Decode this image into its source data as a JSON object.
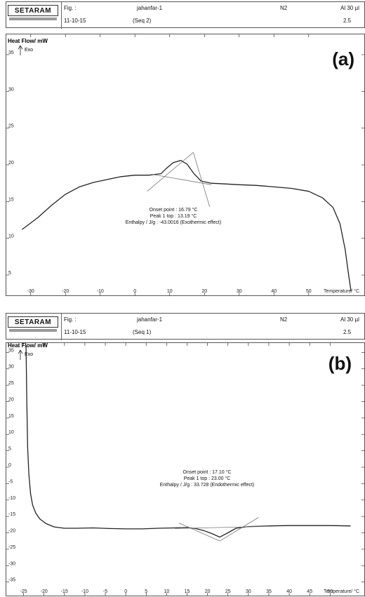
{
  "panels": [
    {
      "tag": "(a)",
      "header": {
        "logo": "SETARAM",
        "fig_label": "Fig. :",
        "date": "11-10-15",
        "sample": "jahanfar-1",
        "seq": "(Seq  2)",
        "gas": "N2",
        "crucible": "Al 30 µl",
        "mass": "2.5"
      },
      "ylabel_line1": "Heat Flow/ mW",
      "ylabel_line2": "Exo",
      "xlabel": "Temperature/ °C",
      "annotation": [
        "Onset point : 16.79  °C",
        "Peak 1 top : 13.19  °C",
        "Enthalpy / J/g : -43.0016 (Exothermic effect)"
      ]
    },
    {
      "tag": "(b)",
      "header": {
        "logo": "SETARAM",
        "fig_label": "Fig. :",
        "date": "11-10-15",
        "sample": "jahanfar-1",
        "seq": "(Seq  1)",
        "gas": "N2",
        "crucible": "Al 30 µl",
        "mass": "2.5"
      },
      "ylabel_line1": "Heat Flow/ mW",
      "ylabel_line2": "Exo",
      "xlabel": "Temperature/ °C",
      "annotation": [
        "Onset point : 17.10  °C",
        "Peak 1 top : 23.00  °C",
        "Enthalpy / J/g : 33.728 (Endothermic effect)"
      ]
    }
  ],
  "chart_data": [
    {
      "type": "line",
      "title": "",
      "xlabel": "Temperature/ °C",
      "ylabel": "Heat Flow/ mW",
      "xlim": [
        -35,
        65
      ],
      "ylim": [
        3,
        37
      ],
      "x_ticks": [
        -30,
        -20,
        -10,
        0,
        10,
        20,
        30,
        40,
        50
      ],
      "y_ticks": [
        35,
        30,
        25,
        20,
        15,
        10,
        5
      ],
      "grid": false,
      "series": [
        {
          "x": [
            -32.5,
            -28,
            -24,
            -20,
            -16,
            -12,
            -8,
            -4,
            0,
            4,
            7.5,
            9,
            11,
            13.19,
            15,
            17,
            19,
            22,
            26,
            30,
            35,
            40,
            45,
            50,
            54,
            57,
            59,
            60.5,
            61.5,
            62.2
          ],
          "y": [
            11.2,
            12.8,
            14.5,
            16.0,
            17.0,
            17.6,
            18.0,
            18.4,
            18.6,
            18.6,
            18.8,
            19.5,
            20.3,
            20.6,
            20.1,
            18.8,
            17.8,
            17.5,
            17.4,
            17.3,
            17.2,
            17.0,
            16.8,
            16.4,
            15.5,
            14.2,
            12.0,
            8.5,
            5.0,
            2.8
          ]
        },
        {
          "x": [
            3.5,
            16.79
          ],
          "y": [
            16.4,
            21.7
          ]
        },
        {
          "x": [
            5,
            22
          ],
          "y": [
            18.7,
            17.3
          ]
        },
        {
          "x": [
            16.79,
            21.5
          ],
          "y": [
            21.7,
            14.3
          ]
        }
      ]
    },
    {
      "type": "line",
      "title": "",
      "xlabel": "Temperature/ °C",
      "ylabel": "Heat Flow/ mW",
      "xlim": [
        -27.5,
        57.5
      ],
      "ylim": [
        -37,
        37
      ],
      "x_ticks": [
        -25,
        -20,
        -15,
        -10,
        -5,
        0,
        5,
        10,
        15,
        20,
        25,
        30,
        35,
        40,
        45,
        50
      ],
      "y_ticks": [
        35,
        30,
        25,
        20,
        15,
        10,
        5,
        0,
        -5,
        -10,
        -15,
        -20,
        -25,
        -30,
        -35
      ],
      "grid": false,
      "series": [
        {
          "x": [
            -24.4,
            -24.2,
            -24.0,
            -23.7,
            -23.3,
            -22.8,
            -22,
            -21,
            -19.5,
            -17.5,
            -15,
            -12,
            -8,
            -4,
            0,
            4,
            8,
            12,
            15,
            17.1,
            19,
            21,
            23,
            25,
            27,
            30,
            35,
            40,
            45,
            50,
            55
          ],
          "y": [
            37,
            20,
            6,
            -2,
            -8,
            -11.5,
            -14,
            -15.8,
            -17.2,
            -18.2,
            -18.6,
            -18.6,
            -18.5,
            -18.7,
            -18.8,
            -18.8,
            -18.6,
            -18.5,
            -18.4,
            -18.7,
            -19.3,
            -20.2,
            -21.3,
            -20.0,
            -18.6,
            -18.1,
            -17.9,
            -17.8,
            -17.8,
            -17.8,
            -17.9
          ]
        },
        {
          "x": [
            12,
            33
          ],
          "y": [
            -18.7,
            -18.1
          ]
        },
        {
          "x": [
            13,
            23.0
          ],
          "y": [
            -17.0,
            -22.5
          ]
        },
        {
          "x": [
            23.0,
            32.5
          ],
          "y": [
            -22.5,
            -15.3
          ]
        }
      ]
    }
  ]
}
